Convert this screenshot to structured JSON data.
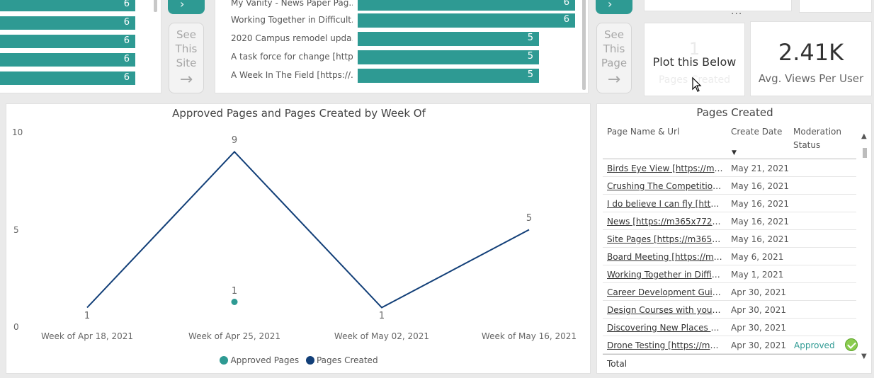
{
  "left_bars": {
    "values": [
      "6",
      "6",
      "6",
      "6",
      "6"
    ]
  },
  "nav": {
    "site_button": [
      "See",
      "This",
      "Site"
    ],
    "page_button": [
      "See",
      "This",
      "Page"
    ],
    "arrow": "→",
    "top_arrow": "›"
  },
  "mid_bars": {
    "rows": [
      {
        "label": "My Vanity - News Paper Pag...",
        "value": "6"
      },
      {
        "label": "Working Together in Difficult...",
        "value": "6"
      },
      {
        "label": "2020 Campus remodel upda...",
        "value": "5"
      },
      {
        "label": "A task force for change [http...",
        "value": "5"
      },
      {
        "label": "A Week In The Field [https://...",
        "value": "5"
      }
    ]
  },
  "plot_card": {
    "ghost_value": "1",
    "label": "Plot this Below",
    "ghost_label": "Pages Created"
  },
  "views_card": {
    "value": "2.41K",
    "label": "Avg. Views Per User"
  },
  "more_options": "...",
  "chart_data": {
    "type": "line",
    "title": "Approved Pages and Pages Created by Week Of",
    "categories": [
      "Week of Apr 18, 2021",
      "Week of Apr 25, 2021",
      "Week of May 02, 2021",
      "Week of May 16, 2021"
    ],
    "series": [
      {
        "name": "Approved Pages",
        "values": [
          null,
          1,
          null,
          null
        ],
        "color": "#2e9a93"
      },
      {
        "name": "Pages Created",
        "values": [
          1,
          9,
          1,
          5
        ],
        "color": "#123f78"
      }
    ],
    "yticks": [
      "10",
      "5",
      "0"
    ],
    "ylim": [
      0,
      10
    ],
    "legend": "bottom"
  },
  "table": {
    "title": "Pages Created",
    "headers": {
      "name": "Page Name & Url",
      "date": "Create Date",
      "status_1": "Moderation",
      "status_2": "Status"
    },
    "sort_icon": "▼",
    "rows": [
      {
        "name": "Birds Eye View [https://m36...",
        "date": "May 21, 2021",
        "status": ""
      },
      {
        "name": "Crushing The Competition ...",
        "date": "May 16, 2021",
        "status": ""
      },
      {
        "name": "I do believe I can fly [https:...",
        "date": "May 16, 2021",
        "status": ""
      },
      {
        "name": "News [https://m365x77256...",
        "date": "May 16, 2021",
        "status": ""
      },
      {
        "name": "Site Pages [https://m365x7...",
        "date": "May 16, 2021",
        "status": ""
      },
      {
        "name": "Board Meeting [https://m3...",
        "date": "May 6, 2021",
        "status": ""
      },
      {
        "name": "Working Together in Difficu...",
        "date": "May 1, 2021",
        "status": ""
      },
      {
        "name": "Career Development Guide...",
        "date": "Apr 30, 2021",
        "status": ""
      },
      {
        "name": "Design Courses with yours ...",
        "date": "Apr 30, 2021",
        "status": ""
      },
      {
        "name": "Discovering New Places Th...",
        "date": "Apr 30, 2021",
        "status": ""
      },
      {
        "name": "Drone Testing [https://m36...",
        "date": "Apr 30, 2021",
        "status": "Approved"
      }
    ],
    "total_label": "Total",
    "scroll_up": "▲",
    "scroll_down": "▼"
  },
  "colors": {
    "teal": "#2e9a93",
    "navy": "#123f78"
  }
}
